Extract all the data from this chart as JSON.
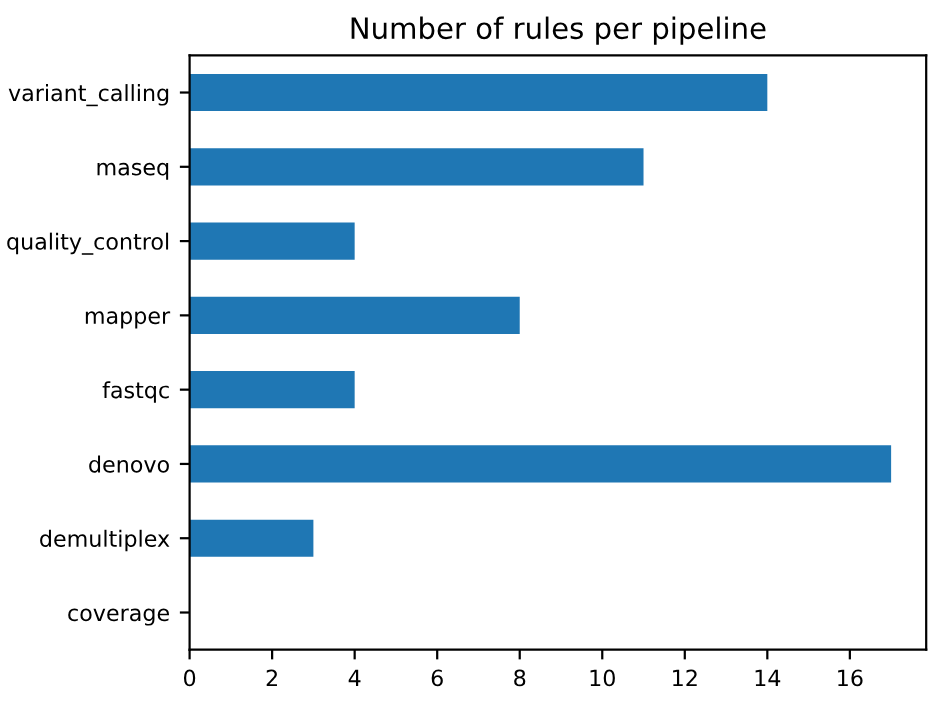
{
  "chart_data": {
    "type": "bar",
    "orientation": "horizontal",
    "title": "Number of rules per pipeline",
    "categories": [
      "variant_calling",
      "maseq",
      "quality_control",
      "mapper",
      "fastqc",
      "denovo",
      "demultiplex",
      "coverage"
    ],
    "values": [
      14,
      11,
      4,
      8,
      4,
      17,
      3,
      0
    ],
    "color": "#1f77b4",
    "xlim": [
      0,
      17.85
    ],
    "xticks": [
      0,
      2,
      4,
      6,
      8,
      10,
      12,
      14,
      16
    ],
    "grid": false,
    "legend": false
  }
}
